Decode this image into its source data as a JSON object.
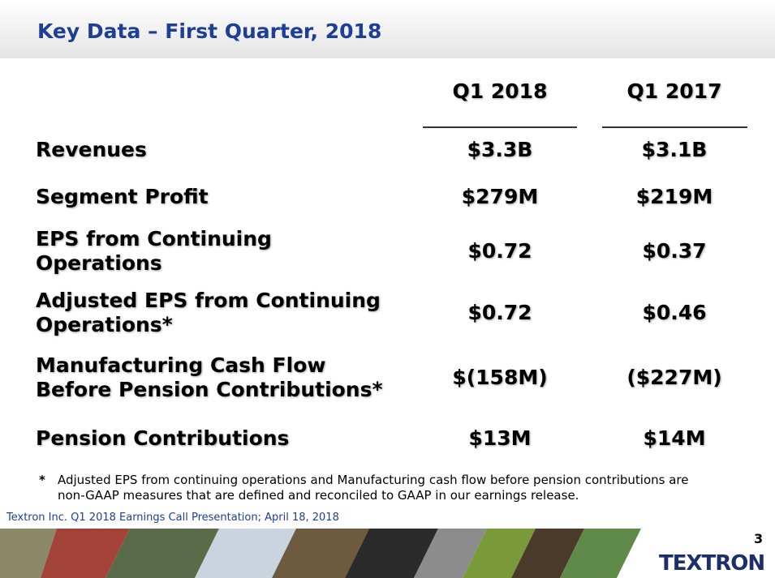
{
  "header": {
    "title": "Key Data – First Quarter, 2018"
  },
  "table": {
    "columns": [
      "Q1 2018",
      "Q1 2017"
    ],
    "rows": [
      {
        "label": [
          "Revenues"
        ],
        "cells": [
          "$3.3B",
          "$3.1B"
        ]
      },
      {
        "label": [
          "Segment Profit"
        ],
        "cells": [
          "$279M",
          "$219M"
        ]
      },
      {
        "label": [
          "EPS from Continuing",
          "Operations"
        ],
        "cells": [
          "$0.72",
          "$0.37"
        ]
      },
      {
        "label": [
          "Adjusted EPS from Continuing",
          "Operations*"
        ],
        "cells": [
          "$0.72",
          "$0.46"
        ]
      },
      {
        "label": [
          "Manufacturing Cash Flow",
          "Before Pension Contributions*"
        ],
        "cells": [
          "$(158M)",
          "($227M)"
        ]
      },
      {
        "label": [
          "Pension Contributions"
        ],
        "cells": [
          "$13M",
          "$14M"
        ]
      }
    ]
  },
  "footnote": {
    "marker": "*",
    "lines": [
      "Adjusted EPS from continuing operations and Manufacturing cash flow before pension contributions are",
      "non-GAAP measures that are defined and reconciled to GAAP in our earnings release."
    ]
  },
  "footer": {
    "source": "Textron Inc. Q1 2018 Earnings Call Presentation; April 18, 2018",
    "page": "3",
    "logo": "TEXTRON"
  }
}
